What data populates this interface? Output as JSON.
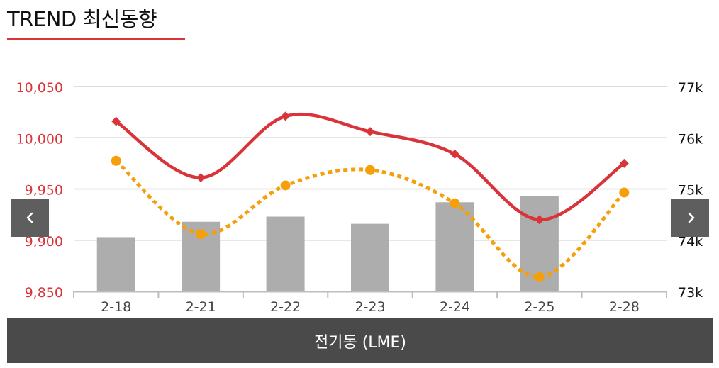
{
  "header": {
    "title": "TREND 최신동향"
  },
  "footer": {
    "label": "전기동 (LME)"
  },
  "nav": {
    "prev_icon": "chevron-left-icon",
    "next_icon": "chevron-right-icon"
  },
  "colors": {
    "accent": "#d8343a",
    "line_primary": "#d8343a",
    "line_secondary": "#f5a00a",
    "bars": "#adadad",
    "footer_bg": "#4a4a4a",
    "nav_bg": "#5e5e5e"
  },
  "chart_data": {
    "type": "bar+line",
    "categories": [
      "2-18",
      "2-21",
      "2-22",
      "2-23",
      "2-24",
      "2-25",
      "2-28"
    ],
    "left_axis": {
      "ylim": [
        9850,
        10050
      ],
      "ticks": [
        "10,050",
        "10,000",
        "9,950",
        "9,900",
        "9,850"
      ],
      "tick_values": [
        10050,
        10000,
        9950,
        9900,
        9850
      ],
      "color": "#d8343a"
    },
    "right_axis": {
      "ylim": [
        73000,
        77000
      ],
      "ticks": [
        "77k",
        "76k",
        "75k",
        "74k",
        "73k"
      ],
      "tick_values": [
        77000,
        76000,
        75000,
        74000,
        73000
      ],
      "color": "#111111"
    },
    "series": [
      {
        "type": "bar",
        "axis": "left",
        "values": [
          9903,
          9918,
          9923,
          9916,
          9937,
          9943,
          null
        ]
      },
      {
        "type": "line",
        "axis": "left",
        "style": "solid",
        "marker": "diamond",
        "values": [
          10016,
          9961,
          10021,
          10006,
          9984,
          9920,
          9975
        ]
      },
      {
        "type": "line",
        "axis": "right",
        "style": "dotted",
        "marker": "circle",
        "values": [
          75550,
          74120,
          75070,
          75370,
          74720,
          73280,
          74930
        ]
      }
    ],
    "grid": true,
    "legend": "none"
  }
}
